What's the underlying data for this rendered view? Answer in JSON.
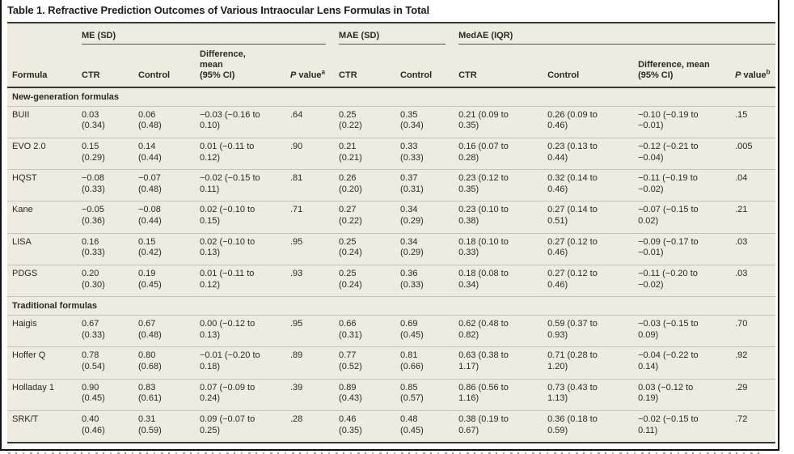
{
  "title": "Table 1. Refractive Prediction Outcomes of Various Intraocular Lens Formulas in Total",
  "table": {
    "spanners": [
      {
        "label": "ME (SD)"
      },
      {
        "label": "MAE (SD)"
      },
      {
        "label": "MedAE (IQR)"
      }
    ],
    "columns": [
      {
        "label": "Formula"
      },
      {
        "label": "CTR"
      },
      {
        "label": "Control"
      },
      {
        "label": "Difference,\nmean\n(95% CI)"
      },
      {
        "label_italic": "P",
        "label_rest": " value",
        "sup": "a"
      },
      {
        "label": "CTR"
      },
      {
        "label": "Control"
      },
      {
        "label": "CTR"
      },
      {
        "label": "Control"
      },
      {
        "label": "Difference, mean\n(95% CI)"
      },
      {
        "label_italic": "P",
        "label_rest": " value",
        "sup": "b"
      }
    ],
    "sections": [
      {
        "header": "New-generation formulas",
        "rows": [
          {
            "formula": "BUII",
            "cells": [
              "0.03\n(0.34)",
              "0.06\n(0.48)",
              "−0.03 (−0.16 to\n0.10)",
              ".64",
              "0.25\n(0.22)",
              "0.35\n(0.34)",
              "0.21 (0.09 to\n0.35)",
              "0.26 (0.09 to\n0.46)",
              "−0.10 (−0.19 to\n−0.01)",
              ".15"
            ]
          },
          {
            "formula": "EVO 2.0",
            "cells": [
              "0.15\n(0.29)",
              "0.14\n(0.44)",
              "0.01 (−0.11 to\n0.12)",
              ".90",
              "0.21\n(0.21)",
              "0.33\n(0.33)",
              "0.16 (0.07 to\n0.28)",
              "0.23 (0.13 to\n0.44)",
              "−0.12 (−0.21 to\n−0.04)",
              ".005"
            ]
          },
          {
            "formula": "HQST",
            "cells": [
              "−0.08\n(0.33)",
              "−0.07\n(0.48)",
              "−0.02 (−0.15 to\n0.11)",
              ".81",
              "0.26\n(0.20)",
              "0.37\n(0.31)",
              "0.23 (0.12 to\n0.35)",
              "0.32 (0.14 to\n0.46)",
              "−0.11 (−0.19 to\n−0.02)",
              ".04"
            ]
          },
          {
            "formula": "Kane",
            "cells": [
              "−0.05\n(0.36)",
              "−0.08\n(0.44)",
              "0.02 (−0.10 to\n0.15)",
              ".71",
              "0.27\n(0.22)",
              "0.34\n(0.29)",
              "0.23 (0.10 to\n0.38)",
              "0.27 (0.14 to\n0.51)",
              "−0.07 (−0.15 to\n0.02)",
              ".21"
            ]
          },
          {
            "formula": "LISA",
            "cells": [
              "0.16\n(0.33)",
              "0.15\n(0.42)",
              "0.02 (−0.10 to\n0.13)",
              ".95",
              "0.25\n(0.24)",
              "0.34\n(0.29)",
              "0.18 (0.10 to\n0.33)",
              "0.27 (0.12 to\n0.46)",
              "−0.09 (−0.17 to\n−0.01)",
              ".03"
            ]
          },
          {
            "formula": "PDGS",
            "cells": [
              "0.20\n(0.30)",
              "0.19\n(0.45)",
              "0.01 (−0.11 to\n0.12)",
              ".93",
              "0.25\n(0.24)",
              "0.36\n(0.33)",
              "0.18 (0.08 to\n0.34)",
              "0.27 (0.12 to\n0.46)",
              "−0.11 (−0.20 to\n−0.02)",
              ".03"
            ]
          }
        ]
      },
      {
        "header": "Traditional formulas",
        "rows": [
          {
            "formula": "Haigis",
            "cells": [
              "0.67\n(0.33)",
              "0.67\n(0.48)",
              "0.00 (−0.12 to\n0.13)",
              ".95",
              "0.66\n(0.31)",
              "0.69\n(0.45)",
              "0.62 (0.48 to\n0.82)",
              "0.59 (0.37 to\n0.93)",
              "−0.03 (−0.15 to\n0.09)",
              ".70"
            ]
          },
          {
            "formula": "Hoffer Q",
            "cells": [
              "0.78\n(0.54)",
              "0.80\n(0.68)",
              "−0.01 (−0.20 to\n0.18)",
              ".89",
              "0.77\n(0.52)",
              "0.81\n(0.66)",
              "0.63 (0.38 to\n1.17)",
              "0.71 (0.28 to\n1.20)",
              "−0.04 (−0.22 to\n0.14)",
              ".92"
            ]
          },
          {
            "formula": "Holladay 1",
            "cells": [
              "0.90\n(0.45)",
              "0.83\n(0.61)",
              "0.07 (−0.09 to\n0.24)",
              ".39",
              "0.89\n(0.43)",
              "0.85\n(0.57)",
              "0.86 (0.56 to\n1.16)",
              "0.73 (0.43 to\n1.13)",
              "0.03 (−0.12 to\n0.19)",
              ".29"
            ]
          },
          {
            "formula": "SRK/T",
            "cells": [
              "0.40\n(0.46)",
              "0.31\n(0.59)",
              "0.09 (−0.07 to\n0.25)",
              ".28",
              "0.46\n(0.35)",
              "0.48\n(0.45)",
              "0.38 (0.19 to\n0.67)",
              "0.36 (0.18 to\n0.59)",
              "−0.02 (−0.15 to\n0.11)",
              ".72"
            ]
          }
        ]
      }
    ]
  },
  "colors": {
    "table_background": "#eeebdf",
    "heavy_rule": "#3a382f",
    "row_separator": "#c7c4b5",
    "frame_border": "#101010",
    "text": "#2b2a25"
  }
}
